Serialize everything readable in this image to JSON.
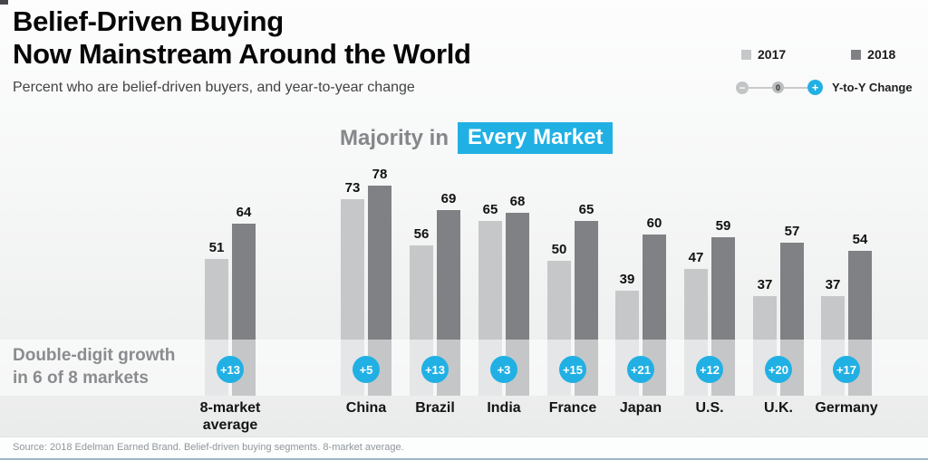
{
  "header": {
    "title_line1": "Belief-Driven Buying",
    "title_line2": "Now Mainstream Around the World",
    "subtitle": "Percent who are belief-driven buyers, and year-to-year change"
  },
  "legend": {
    "items": [
      {
        "label": "2017",
        "color": "#c6c7c9"
      },
      {
        "label": "2018",
        "color": "#7f8184"
      }
    ],
    "minus_symbol": "−",
    "zero_symbol": "0",
    "plus_symbol": "+",
    "change_label": "Y-to-Y Change"
  },
  "chart_title": {
    "prefix": "Majority in",
    "highlight": "Every Market"
  },
  "annotation": {
    "line1": "Double-digit growth",
    "line2": "in 6 of 8 markets"
  },
  "footer": {
    "source": "Source: 2018 Edelman Earned Brand. Belief-driven buying segments. 8-market average."
  },
  "colors": {
    "bar_2017": "#c6c7c9",
    "bar_2018": "#7f8184",
    "accent_cyan": "#21b0e4",
    "band_text": "#8a8c8f",
    "source_text": "#8f979b",
    "bottom_rule": "#9db7c9"
  },
  "chart_data": {
    "type": "bar",
    "title": "Majority in Every Market",
    "subtitle": "Percent who are belief-driven buyers, and year-to-year change",
    "categories": [
      "8-market average",
      "China",
      "Brazil",
      "India",
      "France",
      "Japan",
      "U.S.",
      "U.K.",
      "Germany"
    ],
    "series": [
      {
        "name": "2017",
        "values": [
          51,
          73,
          56,
          65,
          50,
          39,
          47,
          37,
          37
        ]
      },
      {
        "name": "2018",
        "values": [
          64,
          78,
          69,
          68,
          65,
          60,
          59,
          57,
          54
        ]
      }
    ],
    "change_labels": [
      "+13",
      "+5",
      "+13",
      "+3",
      "+15",
      "+21",
      "+12",
      "+20",
      "+17"
    ],
    "unit": "percent",
    "ylim": [
      0,
      100
    ],
    "grid": false,
    "legend_position": "top-right"
  }
}
